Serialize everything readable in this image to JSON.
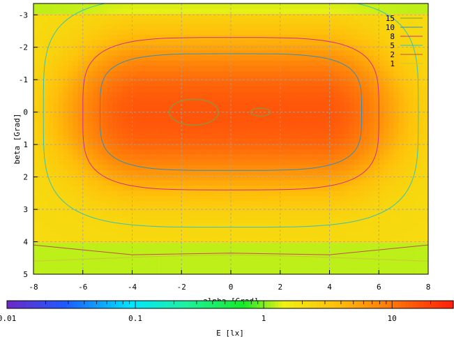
{
  "chart_data": {
    "type": "heatmap",
    "xlabel": "alpha [Grad]",
    "ylabel": "beta [Grad]",
    "colorbar_label": "E [lx]",
    "xlim": [
      -8,
      8
    ],
    "ylim": [
      -3.35,
      5
    ],
    "x_ticks": [
      "-8",
      "-6",
      "-4",
      "-2",
      "0",
      "2",
      "4",
      "6",
      "8"
    ],
    "y_ticks": [
      "-3",
      "-2",
      "-1",
      "0",
      "1",
      "2",
      "3",
      "4",
      "5"
    ],
    "colorbar_ticks": [
      "0.01",
      "0.1",
      "1",
      "10"
    ],
    "colorbar_range": [
      0.01,
      30
    ],
    "colorbar_scale": "log",
    "grid": true,
    "legend_position": "top-right",
    "contour_levels": [
      {
        "name": "15",
        "value": 15,
        "color": "#6aa84f"
      },
      {
        "name": "10",
        "value": 10,
        "color": "#2f8fb8"
      },
      {
        "name": "8",
        "value": 8,
        "color": "#d12a8c"
      },
      {
        "name": "5",
        "value": 5,
        "color": "#33c4b4"
      },
      {
        "name": "2",
        "value": 2,
        "color": "#c0504d"
      },
      {
        "name": "1",
        "value": 1,
        "color": "#c9c93a"
      }
    ],
    "peak_value": 16,
    "peak_positions": [
      [
        -1.5,
        0.0
      ],
      [
        1.2,
        0.0
      ]
    ]
  }
}
